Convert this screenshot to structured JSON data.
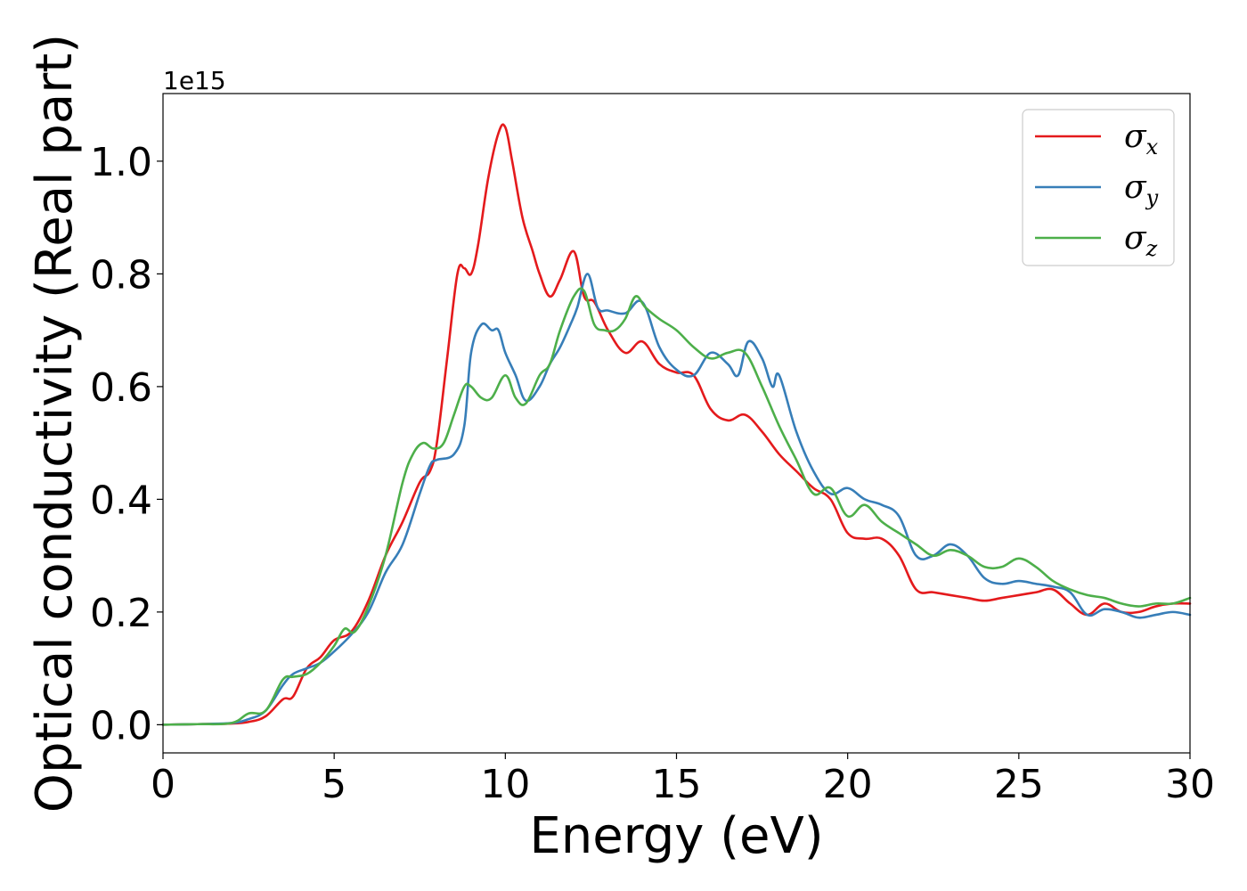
{
  "chart_data": {
    "type": "line",
    "xlabel": "Energy (eV)",
    "ylabel": "Optical conductivity (Real part)",
    "y_offset_label": "1e15",
    "xlim": [
      0,
      30
    ],
    "ylim": [
      -0.05,
      1.12
    ],
    "xticks": [
      0,
      5,
      10,
      15,
      20,
      25,
      30
    ],
    "yticks": [
      0.0,
      0.2,
      0.4,
      0.6,
      0.8,
      1.0
    ],
    "ytick_labels": [
      "0.0",
      "0.2",
      "0.4",
      "0.6",
      "0.8",
      "1.0"
    ],
    "grid": false,
    "legend_position": "top-right",
    "series": [
      {
        "name": "σ",
        "subscript": "x",
        "color": "#e41a1c",
        "x": [
          0,
          1,
          2,
          2.5,
          3,
          3.5,
          3.8,
          4.2,
          4.6,
          5,
          5.5,
          6,
          6.5,
          7,
          7.5,
          7.8,
          8,
          8.3,
          8.6,
          8.8,
          9,
          9.2,
          9.5,
          9.8,
          10,
          10.2,
          10.5,
          10.8,
          11,
          11.3,
          11.6,
          12,
          12.3,
          12.6,
          13,
          13.5,
          14,
          14.5,
          15,
          15.5,
          16,
          16.5,
          17,
          17.5,
          18,
          18.5,
          19,
          19.5,
          20,
          20.5,
          21,
          21.5,
          22,
          22.5,
          23,
          23.5,
          24,
          24.5,
          25,
          25.5,
          26,
          26.5,
          27,
          27.5,
          28,
          28.5,
          29,
          29.5,
          30
        ],
        "y": [
          0,
          0.001,
          0.002,
          0.005,
          0.015,
          0.045,
          0.05,
          0.1,
          0.12,
          0.15,
          0.165,
          0.22,
          0.3,
          0.36,
          0.43,
          0.45,
          0.5,
          0.65,
          0.8,
          0.81,
          0.8,
          0.85,
          0.97,
          1.05,
          1.06,
          1.0,
          0.9,
          0.84,
          0.8,
          0.76,
          0.79,
          0.84,
          0.76,
          0.75,
          0.7,
          0.66,
          0.68,
          0.64,
          0.625,
          0.62,
          0.56,
          0.54,
          0.55,
          0.52,
          0.48,
          0.45,
          0.42,
          0.4,
          0.34,
          0.33,
          0.33,
          0.3,
          0.24,
          0.235,
          0.23,
          0.225,
          0.22,
          0.225,
          0.23,
          0.235,
          0.24,
          0.215,
          0.195,
          0.215,
          0.2,
          0.2,
          0.21,
          0.215,
          0.215
        ]
      },
      {
        "name": "σ",
        "subscript": "y",
        "color": "#377eb8",
        "x": [
          0,
          1,
          2,
          2.5,
          3,
          3.5,
          3.8,
          4.2,
          4.6,
          5,
          5.5,
          6,
          6.5,
          7,
          7.5,
          7.8,
          8,
          8.5,
          8.8,
          9,
          9.3,
          9.6,
          9.8,
          10,
          10.3,
          10.6,
          11,
          11.3,
          11.6,
          11.9,
          12.1,
          12.4,
          12.7,
          13,
          13.5,
          14,
          14.5,
          15,
          15.5,
          16,
          16.5,
          16.8,
          17.1,
          17.5,
          17.8,
          18,
          18.5,
          19,
          19.5,
          20,
          20.5,
          21,
          21.5,
          22,
          22.5,
          23,
          23.5,
          24,
          24.5,
          25,
          25.5,
          26,
          26.5,
          27,
          27.5,
          28,
          28.5,
          29,
          29.5,
          30
        ],
        "y": [
          0,
          0.001,
          0.003,
          0.01,
          0.025,
          0.07,
          0.09,
          0.1,
          0.11,
          0.13,
          0.16,
          0.2,
          0.27,
          0.32,
          0.41,
          0.46,
          0.47,
          0.48,
          0.53,
          0.66,
          0.71,
          0.7,
          0.7,
          0.66,
          0.62,
          0.575,
          0.6,
          0.64,
          0.67,
          0.71,
          0.74,
          0.8,
          0.74,
          0.735,
          0.73,
          0.75,
          0.67,
          0.63,
          0.62,
          0.66,
          0.64,
          0.62,
          0.68,
          0.65,
          0.6,
          0.62,
          0.52,
          0.45,
          0.41,
          0.42,
          0.4,
          0.39,
          0.37,
          0.3,
          0.3,
          0.32,
          0.3,
          0.26,
          0.25,
          0.255,
          0.25,
          0.245,
          0.235,
          0.195,
          0.205,
          0.2,
          0.19,
          0.195,
          0.2,
          0.195
        ]
      },
      {
        "name": "σ",
        "subscript": "z",
        "color": "#4daf4a",
        "x": [
          0,
          1,
          2,
          2.5,
          3,
          3.5,
          3.8,
          4.2,
          4.6,
          5,
          5.3,
          5.6,
          6,
          6.5,
          7,
          7.3,
          7.6,
          7.9,
          8.2,
          8.5,
          8.8,
          9,
          9.3,
          9.6,
          10,
          10.3,
          10.6,
          11,
          11.3,
          11.6,
          12,
          12.3,
          12.6,
          12.9,
          13.2,
          13.5,
          13.8,
          14.1,
          14.5,
          15,
          15.5,
          16,
          16.5,
          17,
          17.5,
          18,
          18.5,
          19,
          19.5,
          20,
          20.5,
          21,
          21.5,
          22,
          22.5,
          23,
          23.5,
          24,
          24.5,
          25,
          25.5,
          26,
          26.5,
          27,
          27.5,
          28,
          28.5,
          29,
          29.5,
          30
        ],
        "y": [
          0,
          0.001,
          0.003,
          0.02,
          0.025,
          0.08,
          0.085,
          0.09,
          0.11,
          0.14,
          0.17,
          0.165,
          0.21,
          0.3,
          0.43,
          0.48,
          0.5,
          0.49,
          0.5,
          0.55,
          0.6,
          0.6,
          0.58,
          0.58,
          0.62,
          0.58,
          0.57,
          0.62,
          0.64,
          0.7,
          0.76,
          0.77,
          0.71,
          0.7,
          0.7,
          0.72,
          0.76,
          0.74,
          0.72,
          0.7,
          0.67,
          0.65,
          0.66,
          0.66,
          0.6,
          0.53,
          0.47,
          0.41,
          0.42,
          0.37,
          0.39,
          0.36,
          0.34,
          0.32,
          0.3,
          0.31,
          0.3,
          0.28,
          0.28,
          0.295,
          0.28,
          0.255,
          0.24,
          0.23,
          0.225,
          0.215,
          0.21,
          0.215,
          0.215,
          0.225
        ]
      }
    ]
  }
}
